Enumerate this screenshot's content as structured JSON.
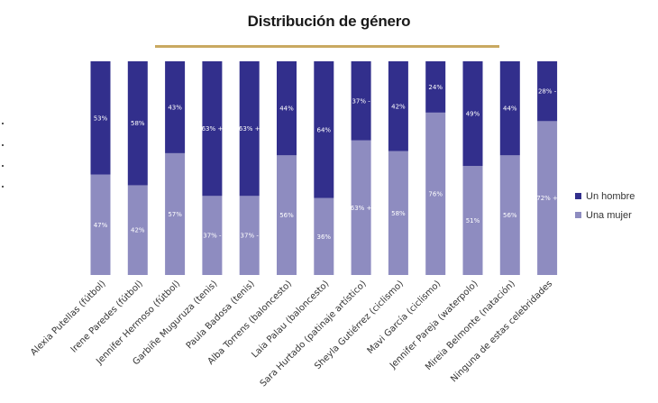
{
  "chart_data": {
    "type": "bar",
    "stacked": true,
    "title": "Distribución de género",
    "categories": [
      "Alexia Putellas (fútbol)",
      "Irene Paredes (fútbol)",
      "Jennifer Hermoso (fútbol)",
      "Garbiñe Muguruza (tenis)",
      "Paula Badosa (tenis)",
      "Alba Torrens (baloncesto)",
      "Laia Palau (baloncesto)",
      "Sara Hurtado (patinaje artístico)",
      "Sheyla Gutiérrez (ciclismo)",
      "Mavi García (ciclismo)",
      "Jennifer Pareja (waterpolo)",
      "Mireia Belmonte (natación)",
      "Ninguna de estas celebridades"
    ],
    "series": [
      {
        "name": "Una mujer",
        "color": "#8e8cc0",
        "values": [
          47,
          42,
          57,
          37,
          37,
          56,
          36,
          63,
          58,
          76,
          51,
          56,
          72
        ],
        "labels": [
          "47%",
          "42%",
          "57%",
          "37% -",
          "37% -",
          "56%",
          "36%",
          "63% +",
          "58%",
          "76%",
          "51%",
          "56%",
          "72% +"
        ]
      },
      {
        "name": "Un hombre",
        "color": "#322f8c",
        "values": [
          53,
          58,
          43,
          63,
          63,
          44,
          64,
          37,
          42,
          24,
          49,
          44,
          28
        ],
        "labels": [
          "53%",
          "58%",
          "43%",
          "63% +",
          "63% +",
          "44%",
          "64%",
          "37% -",
          "42%",
          "24%",
          "49%",
          "44%",
          "28% -"
        ]
      }
    ],
    "ylim": [
      0,
      100
    ],
    "grid": false,
    "legend": "right"
  }
}
